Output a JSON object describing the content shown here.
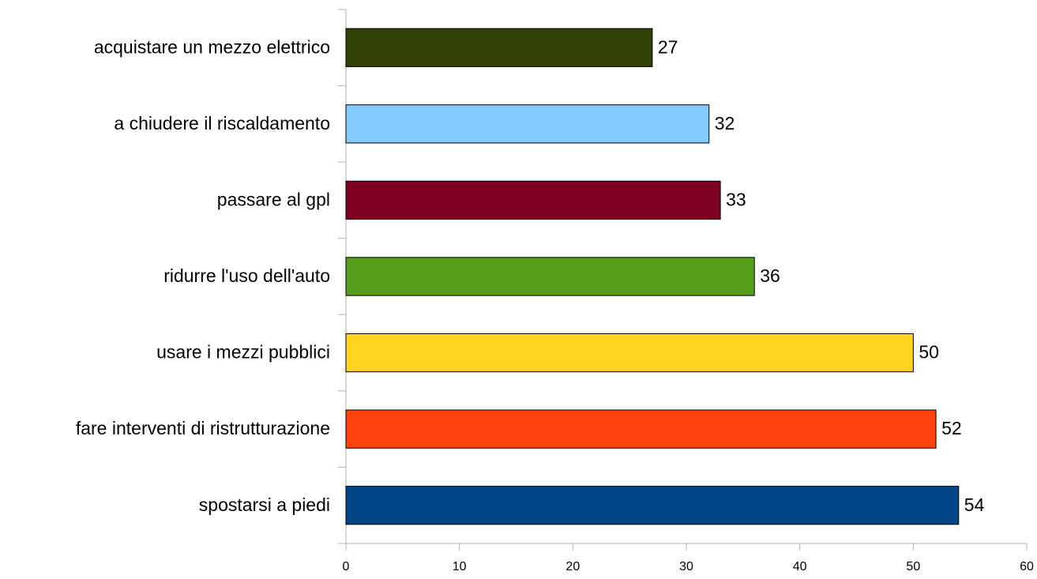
{
  "chart_data": {
    "type": "bar",
    "orientation": "horizontal",
    "categories": [
      "acquistare un mezzo elettrico",
      "a chiudere il riscaldamento",
      "passare al gpl",
      "ridurre l'uso dell'auto",
      "usare i mezzi pubblici",
      "fare interventi di ristrutturazione",
      "spostarsi a piedi"
    ],
    "values": [
      27,
      32,
      33,
      36,
      50,
      52,
      54
    ],
    "colors": [
      "#314004",
      "#83caff",
      "#7e0021",
      "#579d1c",
      "#ffd320",
      "#ff420e",
      "#004586"
    ],
    "xlim": [
      0,
      60
    ],
    "xticks": [
      0,
      10,
      20,
      30,
      40,
      50,
      60
    ],
    "grid": false
  }
}
